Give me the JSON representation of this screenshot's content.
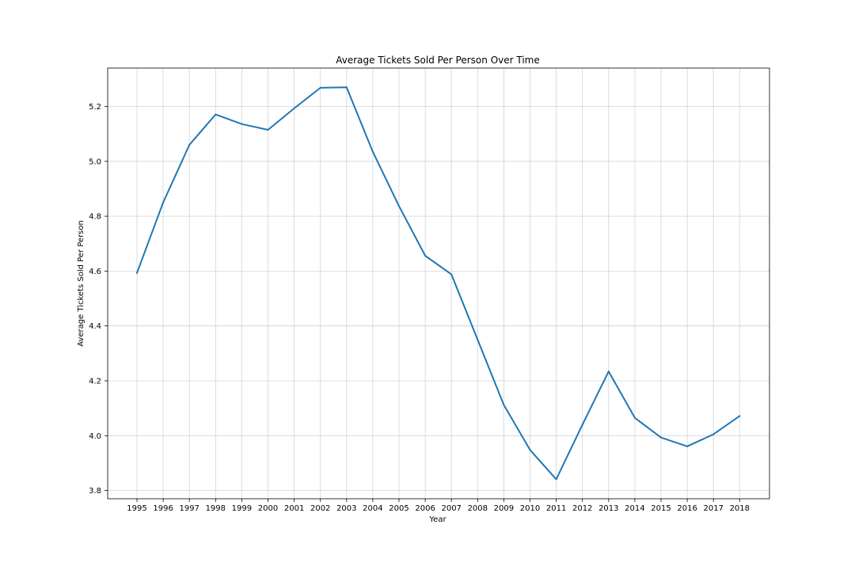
{
  "chart_data": {
    "type": "line",
    "title": "Average Tickets Sold Per Person Over Time",
    "xlabel": "Year",
    "ylabel": "Average Tickets Sold Per Person",
    "x": [
      "1995",
      "1996",
      "1997",
      "1998",
      "1999",
      "2000",
      "2001",
      "2002",
      "2003",
      "2004",
      "2005",
      "2006",
      "2007",
      "2008",
      "2009",
      "2010",
      "2011",
      "2012",
      "2013",
      "2014",
      "2015",
      "2016",
      "2017",
      "2018"
    ],
    "series": [
      {
        "color": "#1f77b4",
        "values": [
          4.593,
          4.85,
          5.06,
          5.171,
          5.136,
          5.115,
          5.193,
          5.268,
          5.27,
          5.035,
          4.837,
          4.656,
          4.588,
          4.35,
          4.112,
          3.948,
          3.841,
          4.04,
          4.234,
          4.065,
          3.993,
          3.961,
          4.005,
          4.072
        ]
      }
    ],
    "ylim": [
      3.77,
      5.34
    ],
    "yticks": [
      "3.8",
      "4.0",
      "4.2",
      "4.4",
      "4.6",
      "4.8",
      "5.0",
      "5.2"
    ],
    "grid": true
  }
}
